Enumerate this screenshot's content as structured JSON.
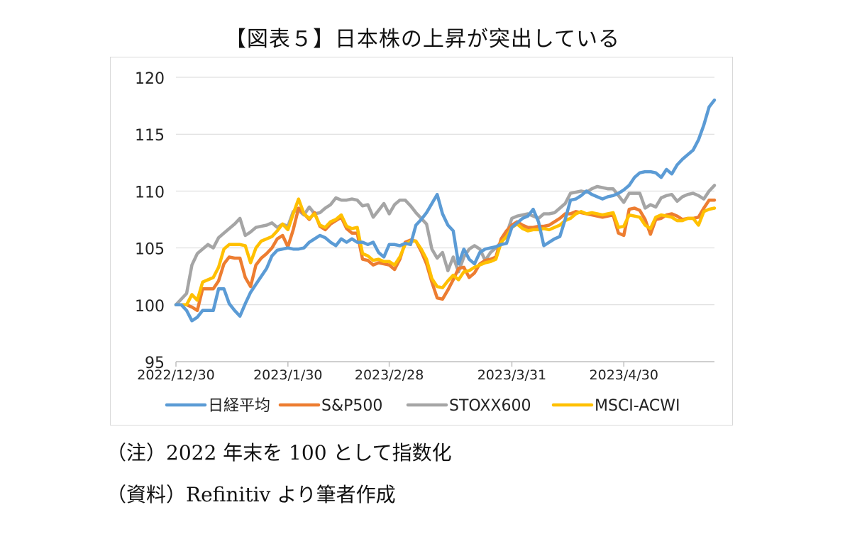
{
  "title": "【図表５】日本株の上昇が突出している",
  "note": "（注）2022 年末を 100 として指数化",
  "source": "（資料）Refinitiv より筆者作成",
  "chart_data": {
    "type": "line",
    "title": "【図表５】日本株の上昇が突出している",
    "xlabel": "",
    "ylabel": "",
    "x_tick_labels": [
      "2022/12/30",
      "2023/1/30",
      "2023/2/28",
      "2023/3/31",
      "2023/4/30"
    ],
    "x_tick_index": [
      0,
      21,
      40,
      63,
      84
    ],
    "ylim": [
      95,
      120
    ],
    "y_ticks": [
      95,
      100,
      105,
      110,
      115,
      120
    ],
    "grid": "horizontal",
    "legend": "bottom",
    "series": [
      {
        "name": "日経平均",
        "color": "#5B9BD5",
        "values": [
          100,
          100,
          99.5,
          98.6,
          98.9,
          99.5,
          99.5,
          99.5,
          101.4,
          101.4,
          100.1,
          99.5,
          99,
          100.1,
          101.1,
          101.8,
          102.5,
          103.2,
          104.3,
          104.8,
          104.9,
          105.0,
          104.9,
          104.9,
          105.0,
          105.5,
          105.8,
          106.1,
          105.9,
          105.5,
          105.2,
          105.8,
          105.5,
          105.8,
          105.5,
          105.5,
          105.3,
          105.5,
          104.6,
          104.2,
          105.3,
          105.3,
          105.2,
          105.4,
          105.3,
          107.0,
          107.5,
          108.1,
          108.9,
          109.7,
          108.0,
          107.0,
          106.5,
          103.6,
          104.9,
          104.0,
          103.6,
          104.6,
          104.9,
          105.0,
          105.1,
          105.3,
          105.4,
          106.8,
          107.2,
          107.6,
          107.8,
          108.4,
          107.3,
          105.2,
          105.5,
          105.8,
          106.0,
          107.5,
          109.2,
          109.3,
          109.6,
          110.0,
          109.7,
          109.5,
          109.3,
          109.5,
          109.6,
          109.8,
          110.1,
          110.5,
          111.2,
          111.6,
          111.7,
          111.7,
          111.6,
          111.2,
          111.9,
          111.5,
          112.3,
          112.8,
          113.2,
          113.6,
          114.5,
          115.8,
          117.4,
          118.0
        ]
      },
      {
        "name": "S&P500",
        "color": "#ED7D31",
        "values": [
          100,
          100,
          100,
          99.8,
          99.5,
          101.4,
          101.4,
          101.4,
          102.1,
          103.6,
          104.2,
          104.1,
          104.1,
          102.4,
          101.6,
          103.5,
          104.1,
          104.5,
          105.0,
          105.8,
          106.1,
          105.1,
          106.6,
          108.5,
          108.0,
          107.5,
          108.1,
          106.9,
          106.6,
          107.1,
          107.4,
          107.7,
          106.7,
          106.3,
          106.3,
          104.0,
          103.9,
          103.5,
          103.7,
          103.6,
          103.5,
          103.1,
          104.0,
          105.5,
          105.7,
          105.6,
          104.7,
          103.6,
          102.0,
          100.6,
          100.5,
          101.3,
          102.2,
          103.2,
          103.3,
          102.4,
          102.8,
          103.6,
          103.9,
          104.0,
          104.2,
          105.8,
          106.5,
          107.0,
          107.3,
          107.0,
          106.8,
          106.8,
          106.9,
          106.9,
          107.0,
          107.3,
          107.6,
          108.0,
          108.0,
          108.2,
          108.1,
          108.0,
          107.9,
          107.8,
          107.7,
          107.8,
          107.9,
          106.3,
          106.1,
          108.4,
          108.5,
          108.3,
          107.5,
          106.2,
          107.5,
          107.6,
          107.9,
          108.0,
          107.8,
          107.5,
          107.6,
          107.6,
          107.7,
          108.5,
          109.2,
          109.2
        ]
      },
      {
        "name": "STOXX600",
        "color": "#A5A5A5",
        "values": [
          100,
          100.5,
          101,
          103.5,
          104.5,
          104.9,
          105.3,
          105.0,
          105.9,
          106.3,
          106.7,
          107.1,
          107.6,
          106.1,
          106.4,
          106.8,
          106.9,
          107.0,
          107.2,
          106.8,
          107.1,
          106.9,
          108.2,
          108.3,
          107.9,
          108.6,
          108.0,
          108.1,
          108.5,
          108.8,
          109.4,
          109.2,
          109.2,
          109.3,
          109.2,
          108.7,
          108.8,
          107.7,
          108.3,
          108.9,
          108.0,
          108.8,
          109.2,
          109.2,
          108.7,
          108.1,
          107.6,
          107.1,
          104.9,
          104.1,
          104.6,
          103.0,
          104.2,
          102.9,
          104.2,
          104.9,
          105.2,
          104.9,
          103.9,
          104.6,
          105.0,
          105.5,
          106.2,
          107.6,
          107.8,
          107.9,
          108.0,
          107.8,
          107.6,
          108.0,
          108.0,
          108.1,
          108.5,
          108.9,
          109.8,
          109.9,
          110.0,
          109.9,
          110.2,
          110.4,
          110.3,
          110.2,
          110.2,
          109.6,
          109.0,
          109.8,
          109.8,
          109.8,
          108.5,
          108.8,
          108.6,
          109.4,
          109.6,
          109.7,
          109.1,
          109.5,
          109.7,
          109.8,
          109.6,
          109.3,
          110.0,
          110.5
        ]
      },
      {
        "name": "MSCI-ACWI",
        "color": "#FFC000",
        "values": [
          100,
          100,
          100,
          100.9,
          100.4,
          102.0,
          102.2,
          102.4,
          103.3,
          104.9,
          105.3,
          105.3,
          105.3,
          105.2,
          103.7,
          105.0,
          105.6,
          105.8,
          106.0,
          106.5,
          107.1,
          106.6,
          108.0,
          109.3,
          108.0,
          107.6,
          108.0,
          107.0,
          106.8,
          107.3,
          107.5,
          107.9,
          106.9,
          106.7,
          106.8,
          104.5,
          104.3,
          103.9,
          104.0,
          103.8,
          103.8,
          103.5,
          104.2,
          105.3,
          105.6,
          105.6,
          104.9,
          104.0,
          102.3,
          101.6,
          101.5,
          102.1,
          102.6,
          102.2,
          102.9,
          103.0,
          103.3,
          103.5,
          103.7,
          103.8,
          104.0,
          105.5,
          106.0,
          106.8,
          107.1,
          106.7,
          106.5,
          106.6,
          106.6,
          106.7,
          106.6,
          106.8,
          107.0,
          107.4,
          107.6,
          108.0,
          108.2,
          108.0,
          108.1,
          108.0,
          107.9,
          108.0,
          108.1,
          106.8,
          106.9,
          107.9,
          107.8,
          107.7,
          107.0,
          106.7,
          107.7,
          107.9,
          107.8,
          107.7,
          107.4,
          107.4,
          107.6,
          107.6,
          107.0,
          108.2,
          108.4,
          108.5
        ]
      }
    ]
  }
}
